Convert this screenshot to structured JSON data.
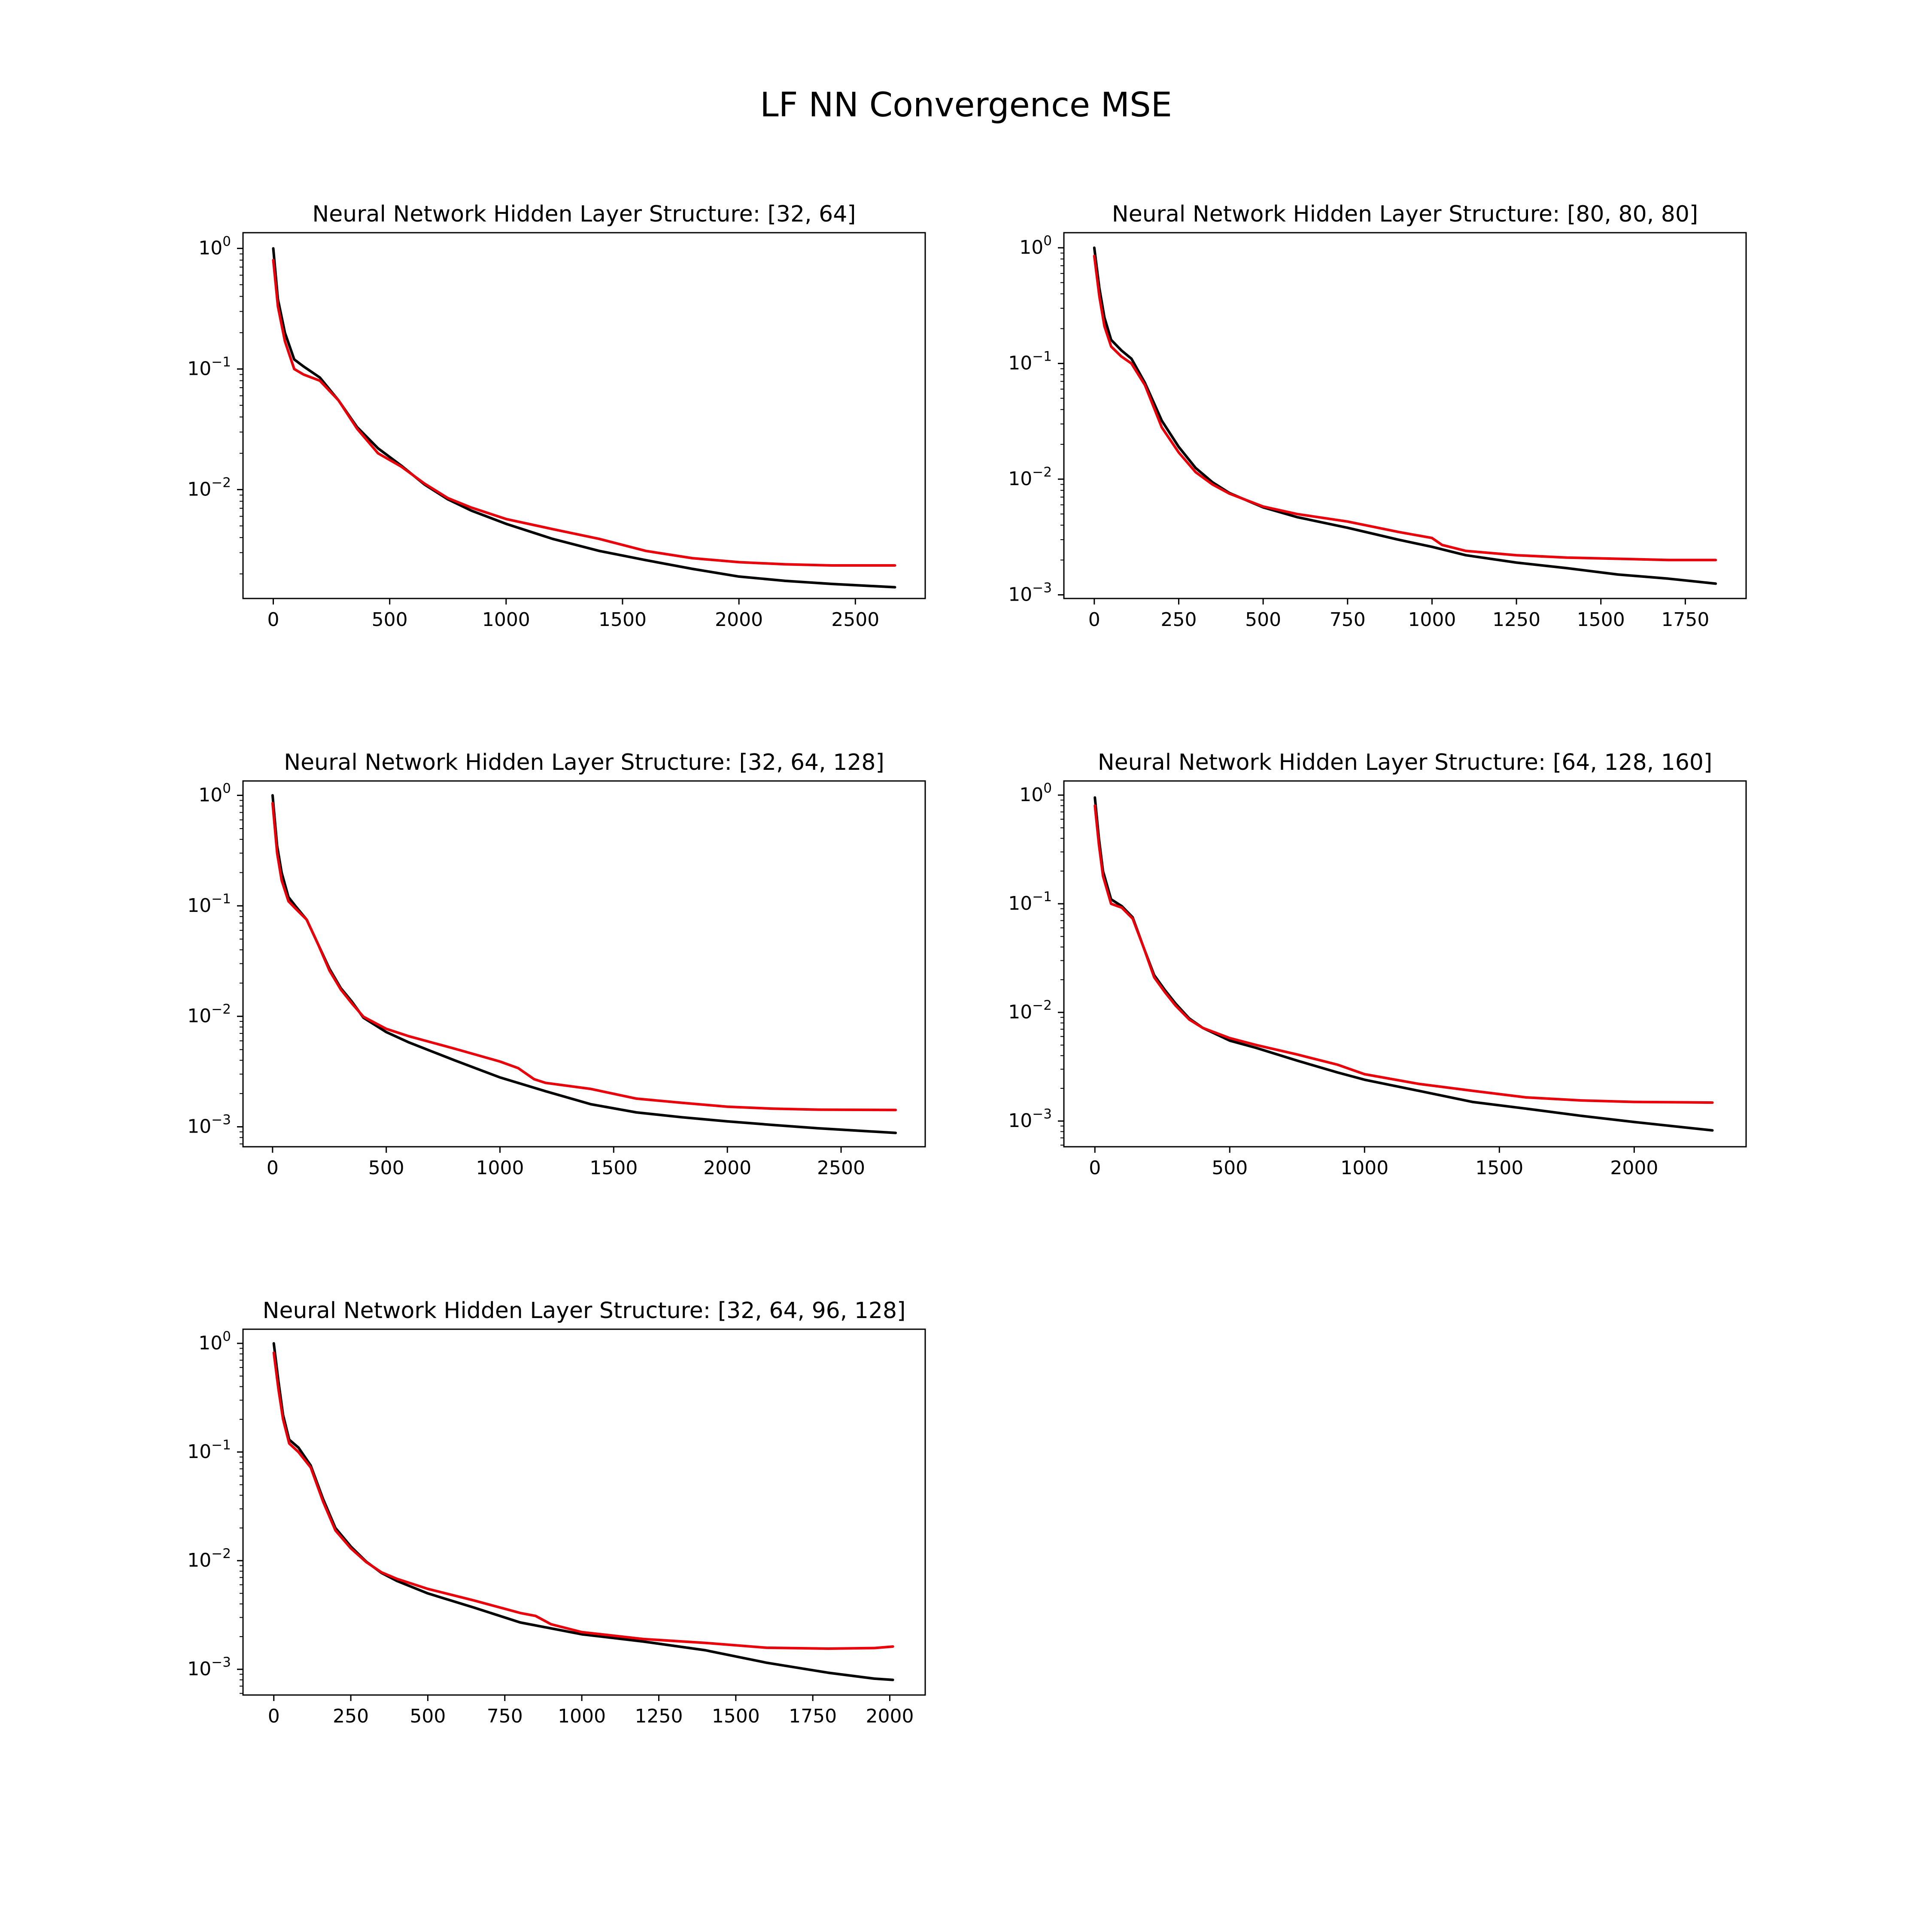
{
  "figure": {
    "title": "LF NN Convergence MSE"
  },
  "chart_data": [
    {
      "type": "line",
      "title": "Neural Network Hidden Layer Structure: [32, 64]",
      "xlabel": "",
      "ylabel": "",
      "yscale": "log",
      "xlim": [
        -130,
        2800
      ],
      "ylim": [
        0.00125,
        1.35
      ],
      "xticks": [
        0,
        500,
        1000,
        1500,
        2000,
        2500
      ],
      "yticks": [
        {
          "base": "10",
          "exp": "0",
          "value": 1
        },
        {
          "base": "10",
          "exp": "−1",
          "value": 0.1
        },
        {
          "base": "10",
          "exp": "−2",
          "value": 0.01
        }
      ],
      "grid": false,
      "series": [
        {
          "color": "#000000",
          "x": [
            0,
            20,
            50,
            90,
            130,
            200,
            280,
            360,
            450,
            550,
            650,
            750,
            850,
            1000,
            1200,
            1400,
            1600,
            1800,
            2000,
            2200,
            2400,
            2670
          ],
          "y": [
            1.0,
            0.38,
            0.2,
            0.12,
            0.105,
            0.085,
            0.055,
            0.033,
            0.022,
            0.0158,
            0.011,
            0.0083,
            0.0067,
            0.0052,
            0.0039,
            0.0031,
            0.0026,
            0.0022,
            0.0019,
            0.00175,
            0.00165,
            0.00155
          ]
        },
        {
          "color": "#e8000b",
          "x": [
            0,
            20,
            50,
            90,
            130,
            200,
            280,
            360,
            450,
            550,
            650,
            750,
            850,
            1000,
            1200,
            1400,
            1600,
            1800,
            2000,
            2200,
            2400,
            2670
          ],
          "y": [
            0.8,
            0.33,
            0.17,
            0.1,
            0.09,
            0.08,
            0.055,
            0.032,
            0.02,
            0.0155,
            0.0112,
            0.0085,
            0.0071,
            0.0057,
            0.0047,
            0.0039,
            0.0031,
            0.0027,
            0.0025,
            0.0024,
            0.00235,
            0.00235
          ]
        }
      ]
    },
    {
      "type": "line",
      "title": "Neural Network Hidden Layer Structure: [80, 80, 80]",
      "xlabel": "",
      "ylabel": "",
      "yscale": "log",
      "xlim": [
        -90,
        1930
      ],
      "ylim": [
        0.00093,
        1.35
      ],
      "xticks": [
        0,
        250,
        500,
        750,
        1000,
        1250,
        1500,
        1750
      ],
      "yticks": [
        {
          "base": "10",
          "exp": "0",
          "value": 1
        },
        {
          "base": "10",
          "exp": "−1",
          "value": 0.1
        },
        {
          "base": "10",
          "exp": "−2",
          "value": 0.01
        },
        {
          "base": "10",
          "exp": "−3",
          "value": 0.001
        }
      ],
      "grid": false,
      "series": [
        {
          "color": "#000000",
          "x": [
            0,
            15,
            30,
            50,
            80,
            110,
            150,
            200,
            250,
            300,
            350,
            400,
            500,
            600,
            750,
            900,
            1000,
            1100,
            1250,
            1400,
            1550,
            1700,
            1840
          ],
          "y": [
            1.0,
            0.45,
            0.25,
            0.16,
            0.13,
            0.11,
            0.068,
            0.032,
            0.019,
            0.0125,
            0.0094,
            0.0076,
            0.0057,
            0.0047,
            0.0038,
            0.003,
            0.0026,
            0.0022,
            0.0019,
            0.0017,
            0.0015,
            0.00138,
            0.00125
          ]
        },
        {
          "color": "#e8000b",
          "x": [
            0,
            15,
            30,
            50,
            80,
            110,
            150,
            200,
            250,
            300,
            350,
            400,
            500,
            600,
            750,
            900,
            1000,
            1030,
            1100,
            1250,
            1400,
            1550,
            1700,
            1840
          ],
          "y": [
            0.85,
            0.38,
            0.21,
            0.14,
            0.115,
            0.1,
            0.065,
            0.028,
            0.017,
            0.0115,
            0.009,
            0.0075,
            0.0058,
            0.005,
            0.0043,
            0.0035,
            0.0031,
            0.0027,
            0.0024,
            0.0022,
            0.0021,
            0.00205,
            0.002,
            0.002
          ]
        }
      ]
    },
    {
      "type": "line",
      "title": "Neural Network Hidden Layer Structure: [32, 64, 128]",
      "xlabel": "",
      "ylabel": "",
      "yscale": "log",
      "xlim": [
        -130,
        2870
      ],
      "ylim": [
        0.00066,
        1.35
      ],
      "xticks": [
        0,
        500,
        1000,
        1500,
        2000,
        2500
      ],
      "yticks": [
        {
          "base": "10",
          "exp": "0",
          "value": 1
        },
        {
          "base": "10",
          "exp": "−1",
          "value": 0.1
        },
        {
          "base": "10",
          "exp": "−2",
          "value": 0.01
        },
        {
          "base": "10",
          "exp": "−3",
          "value": 0.001
        }
      ],
      "grid": false,
      "series": [
        {
          "color": "#000000",
          "x": [
            0,
            20,
            40,
            70,
            100,
            150,
            200,
            250,
            300,
            350,
            400,
            500,
            600,
            800,
            1000,
            1200,
            1400,
            1600,
            1800,
            2000,
            2200,
            2400,
            2740
          ],
          "y": [
            1.0,
            0.35,
            0.2,
            0.12,
            0.1,
            0.075,
            0.045,
            0.027,
            0.018,
            0.0135,
            0.0097,
            0.0072,
            0.0058,
            0.004,
            0.0028,
            0.0021,
            0.0016,
            0.00135,
            0.00122,
            0.00112,
            0.00104,
            0.00097,
            0.00088
          ]
        },
        {
          "color": "#e8000b",
          "x": [
            0,
            20,
            40,
            70,
            100,
            150,
            200,
            250,
            300,
            350,
            400,
            500,
            600,
            800,
            1000,
            1080,
            1150,
            1200,
            1400,
            1600,
            1800,
            2000,
            2200,
            2400,
            2740
          ],
          "y": [
            0.85,
            0.3,
            0.17,
            0.11,
            0.095,
            0.075,
            0.045,
            0.026,
            0.0175,
            0.013,
            0.0099,
            0.0077,
            0.0066,
            0.0051,
            0.0039,
            0.0034,
            0.0027,
            0.0025,
            0.0022,
            0.0018,
            0.00165,
            0.00152,
            0.00146,
            0.00143,
            0.00142
          ]
        }
      ]
    },
    {
      "type": "line",
      "title": "Neural Network Hidden Layer Structure: [64, 128, 160]",
      "xlabel": "",
      "ylabel": "",
      "yscale": "log",
      "xlim": [
        -115,
        2415
      ],
      "ylim": [
        0.00058,
        1.35
      ],
      "xticks": [
        0,
        500,
        1000,
        1500,
        2000
      ],
      "yticks": [
        {
          "base": "10",
          "exp": "0",
          "value": 1
        },
        {
          "base": "10",
          "exp": "−1",
          "value": 0.1
        },
        {
          "base": "10",
          "exp": "−2",
          "value": 0.01
        },
        {
          "base": "10",
          "exp": "−3",
          "value": 0.001
        }
      ],
      "grid": false,
      "series": [
        {
          "color": "#000000",
          "x": [
            0,
            15,
            30,
            60,
            100,
            140,
            180,
            220,
            260,
            300,
            350,
            400,
            500,
            600,
            750,
            900,
            1000,
            1200,
            1400,
            1600,
            1800,
            2000,
            2290
          ],
          "y": [
            0.95,
            0.4,
            0.2,
            0.11,
            0.095,
            0.075,
            0.04,
            0.022,
            0.016,
            0.012,
            0.0088,
            0.0072,
            0.0055,
            0.0047,
            0.0036,
            0.0028,
            0.0024,
            0.0019,
            0.0015,
            0.0013,
            0.00112,
            0.00098,
            0.00082
          ]
        },
        {
          "color": "#e8000b",
          "x": [
            0,
            15,
            30,
            60,
            100,
            140,
            180,
            220,
            260,
            300,
            350,
            400,
            500,
            600,
            750,
            900,
            1000,
            1200,
            1400,
            1600,
            1800,
            2000,
            2290
          ],
          "y": [
            0.8,
            0.35,
            0.18,
            0.1,
            0.092,
            0.073,
            0.04,
            0.021,
            0.0153,
            0.0115,
            0.0086,
            0.0072,
            0.0058,
            0.005,
            0.0041,
            0.0033,
            0.0027,
            0.0022,
            0.0019,
            0.00165,
            0.00155,
            0.0015,
            0.00148
          ]
        }
      ]
    },
    {
      "type": "line",
      "title": "Neural Network Hidden Layer Structure: [32, 64, 96, 128]",
      "xlabel": "",
      "ylabel": "",
      "yscale": "log",
      "xlim": [
        -100,
        2115
      ],
      "ylim": [
        0.00058,
        1.35
      ],
      "xticks": [
        0,
        250,
        500,
        750,
        1000,
        1250,
        1500,
        1750,
        2000
      ],
      "yticks": [
        {
          "base": "10",
          "exp": "0",
          "value": 1
        },
        {
          "base": "10",
          "exp": "−1",
          "value": 0.1
        },
        {
          "base": "10",
          "exp": "−2",
          "value": 0.01
        },
        {
          "base": "10",
          "exp": "−3",
          "value": 0.001
        }
      ],
      "grid": false,
      "series": [
        {
          "color": "#000000",
          "x": [
            0,
            15,
            30,
            50,
            80,
            120,
            160,
            200,
            250,
            300,
            350,
            400,
            500,
            650,
            800,
            1000,
            1200,
            1400,
            1600,
            1800,
            1950,
            2010
          ],
          "y": [
            1.0,
            0.45,
            0.22,
            0.13,
            0.11,
            0.075,
            0.037,
            0.02,
            0.0135,
            0.0098,
            0.0077,
            0.0065,
            0.005,
            0.0037,
            0.0027,
            0.0021,
            0.0018,
            0.0015,
            0.00115,
            0.00093,
            0.00082,
            0.0008
          ]
        },
        {
          "color": "#e8000b",
          "x": [
            0,
            15,
            30,
            50,
            80,
            120,
            160,
            200,
            250,
            300,
            350,
            400,
            500,
            650,
            800,
            850,
            900,
            1000,
            1200,
            1400,
            1600,
            1800,
            1950,
            2010
          ],
          "y": [
            0.82,
            0.38,
            0.2,
            0.12,
            0.1,
            0.072,
            0.035,
            0.019,
            0.013,
            0.0097,
            0.0078,
            0.0068,
            0.0055,
            0.0043,
            0.0033,
            0.0031,
            0.0026,
            0.0022,
            0.0019,
            0.00175,
            0.00158,
            0.00155,
            0.00157,
            0.00162
          ]
        }
      ]
    }
  ]
}
